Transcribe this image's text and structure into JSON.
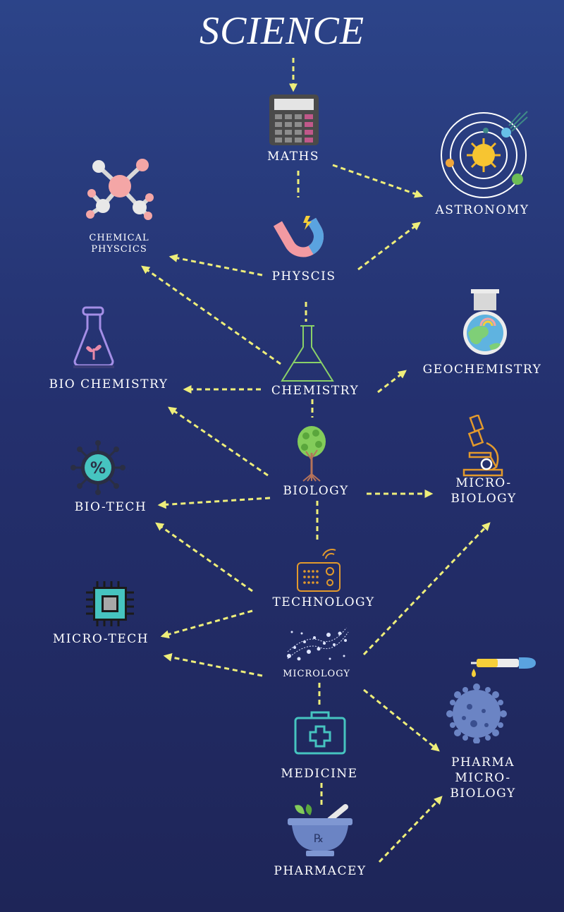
{
  "title": "SCIENCE",
  "nodes": {
    "maths": "MATHS",
    "astronomy": "ASTRONOMY",
    "chemical_physics_line1": "CHEMICAL",
    "chemical_physics_line2": "PHYSCICS",
    "physics": "PHYSCIS",
    "chemistry": "CHEMISTRY",
    "bio_chemistry": "BIO CHEMISTRY",
    "geochemistry": "GEOCHEMISTRY",
    "biology": "BIOLOGY",
    "microbiology_line1": "MICRO-",
    "microbiology_line2": "BIOLOGY",
    "bio_tech": "BIO-TECH",
    "technology": "TECHNOLOGY",
    "micro_tech": "MICRO-TECH",
    "micrology": "MICROLOGY",
    "medicine": "MEDICINE",
    "pharmacey": "PHARMACEY",
    "pharma_line1": "PHARMA",
    "pharma_line2": "MICRO-",
    "pharma_line3": "BIOLOGY"
  },
  "icons": {
    "maths": "calculator-icon",
    "astronomy": "solar-system-icon",
    "chemical_physics": "molecule-icon",
    "physics": "magnet-icon",
    "chemistry": "flask-icon",
    "bio_chemistry": "plant-flask-icon",
    "geochemistry": "earth-flask-icon",
    "biology": "tree-icon",
    "microbiology": "microscope-icon",
    "bio_tech": "virus-icon",
    "technology": "radio-icon",
    "micro_tech": "chip-icon",
    "micrology": "dna-particles-icon",
    "medicine": "medical-kit-icon",
    "pharmacey": "mortar-pestle-icon",
    "pharma_microbiology": "dropper-bacteria-icon"
  },
  "colors": {
    "arrow": "#eeee7a",
    "background_top": "#2c4489",
    "background_bottom": "#1e2558"
  }
}
